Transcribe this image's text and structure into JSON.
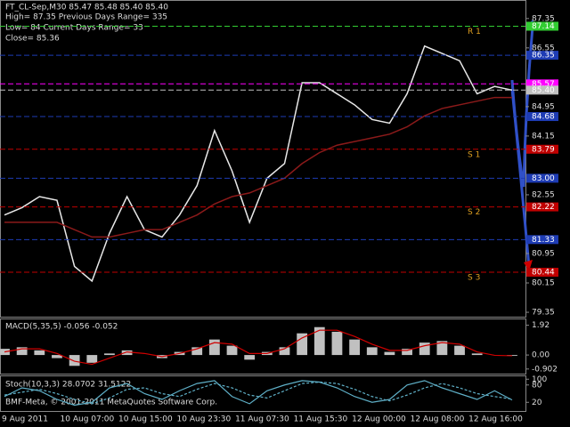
{
  "chart_data": [
    {
      "type": "line",
      "title": "FT_CL-Sep,M30  85.47 85.48 85.40 85.40",
      "info": [
        "High= 87.35   Previous Days Range= 335",
        "Low= 84   Current Days Range= 33",
        "Close= 85.36"
      ],
      "x_labels": [
        "9 Aug 2011",
        "10 Aug 07:00",
        "10 Aug 15:00",
        "10 Aug 23:30",
        "11 Aug 07:30",
        "11 Aug 15:30",
        "12 Aug 00:00",
        "12 Aug 08:00",
        "12 Aug 16:00"
      ],
      "ylim": [
        79.23,
        87.83
      ],
      "yticks": [
        87.35,
        86.55,
        84.95,
        84.15,
        82.55,
        80.95,
        80.15,
        79.35
      ],
      "series": [
        {
          "name": "Close",
          "color": "#e8e8e8",
          "values": [
            82.0,
            82.2,
            82.5,
            82.4,
            80.6,
            80.2,
            81.5,
            82.5,
            81.6,
            81.4,
            82.0,
            82.8,
            84.3,
            83.2,
            81.8,
            83.0,
            83.4,
            85.6,
            85.6,
            85.3,
            85.0,
            84.6,
            84.5,
            85.3,
            86.6,
            86.4,
            86.2,
            85.3,
            85.5,
            85.4
          ]
        },
        {
          "name": "MA",
          "color": "#8b1a1a",
          "values": [
            81.8,
            81.8,
            81.8,
            81.8,
            81.6,
            81.4,
            81.4,
            81.5,
            81.6,
            81.6,
            81.8,
            82.0,
            82.3,
            82.5,
            82.6,
            82.8,
            83.0,
            83.4,
            83.7,
            83.9,
            84.0,
            84.1,
            84.2,
            84.4,
            84.7,
            84.9,
            85.0,
            85.1,
            85.2,
            85.2
          ]
        }
      ],
      "levels": {
        "values": [
          87.14,
          86.35,
          85.57,
          85.4,
          84.68,
          83.79,
          83,
          82.22,
          81.33,
          80.44
        ],
        "value_labels": [
          "87.14",
          "86.35",
          "85.57",
          "85.40",
          "84.68",
          "83.79",
          "83.00",
          "82.22",
          "81.33",
          "80.44"
        ],
        "colors": [
          "#32cd32",
          "#1e3cb4",
          "#ff00ff",
          "#c0c0c0",
          "#1e3cb4",
          "#c00000",
          "#1e3cb4",
          "#c00000",
          "#1e3cb4",
          "#c00000"
        ]
      },
      "level_names": [
        {
          "value": 87.14,
          "label": "R 1"
        },
        {
          "value": 83.79,
          "label": "S 1"
        },
        {
          "value": 82.22,
          "label": "S 2"
        },
        {
          "value": 80.44,
          "label": "S 3"
        }
      ]
    },
    {
      "type": "bar",
      "title": "MACD(5,35,5) -0.056 -0.052",
      "ylim": [
        -1.2,
        2.3
      ],
      "yticks": [
        1.92,
        {
          "value": 0,
          "label": "0.00"
        },
        -0.902
      ],
      "series": [
        {
          "name": "MACD",
          "color": "#c0c0c0",
          "values": [
            0.4,
            0.5,
            0.3,
            -0.2,
            -0.7,
            -0.5,
            0.1,
            0.3,
            0.0,
            -0.2,
            0.2,
            0.5,
            1.0,
            0.6,
            -0.3,
            0.2,
            0.5,
            1.4,
            1.8,
            1.5,
            1.0,
            0.5,
            0.2,
            0.4,
            0.8,
            0.9,
            0.6,
            0.1,
            0.0,
            -0.05
          ]
        },
        {
          "name": "Signal",
          "color": "#d00000",
          "values": [
            0.2,
            0.4,
            0.4,
            0.1,
            -0.4,
            -0.6,
            -0.2,
            0.2,
            0.1,
            -0.1,
            0.1,
            0.4,
            0.8,
            0.7,
            0.1,
            0.1,
            0.4,
            1.1,
            1.6,
            1.6,
            1.2,
            0.7,
            0.3,
            0.3,
            0.6,
            0.8,
            0.7,
            0.2,
            -0.02,
            -0.05
          ]
        }
      ]
    },
    {
      "type": "line",
      "title": "Stoch(10,3,3) 28.0702 31.5122",
      "ylim": [
        -10,
        110
      ],
      "yticks": [
        100,
        80,
        20
      ],
      "footer": "BMF-Meta, © 2001-2011 MetaQuotes Software Corp.",
      "series": [
        {
          "name": "Main",
          "color": "#5fb0c8",
          "values": [
            40,
            70,
            60,
            30,
            10,
            20,
            70,
            85,
            50,
            30,
            60,
            85,
            95,
            40,
            15,
            60,
            80,
            95,
            90,
            70,
            40,
            20,
            30,
            80,
            95,
            70,
            50,
            30,
            60,
            28
          ]
        },
        {
          "name": "Signal",
          "color": "#5fb0c8",
          "dash": true,
          "values": [
            45,
            55,
            65,
            50,
            30,
            15,
            35,
            65,
            70,
            50,
            40,
            65,
            85,
            70,
            45,
            35,
            60,
            85,
            90,
            85,
            65,
            40,
            25,
            45,
            70,
            85,
            70,
            50,
            40,
            31
          ]
        }
      ]
    }
  ]
}
